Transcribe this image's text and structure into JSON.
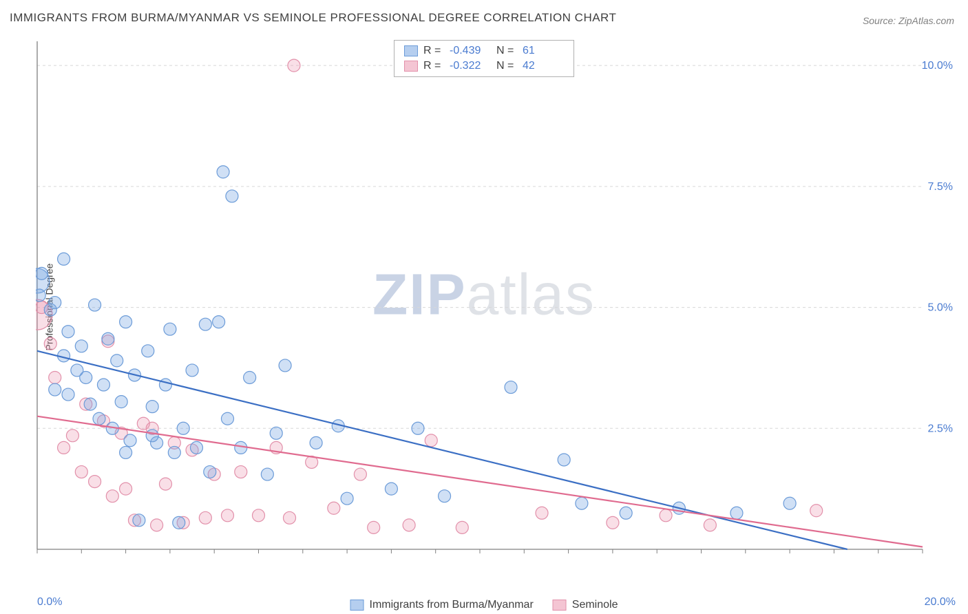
{
  "title": "IMMIGRANTS FROM BURMA/MYANMAR VS SEMINOLE PROFESSIONAL DEGREE CORRELATION CHART",
  "source": "Source: ZipAtlas.com",
  "ylabel": "Professional Degree",
  "watermark_a": "ZIP",
  "watermark_b": "atlas",
  "chart": {
    "type": "scatter",
    "xlim": [
      0,
      20
    ],
    "ylim": [
      0,
      10.5
    ],
    "xtick_min_label": "0.0%",
    "xtick_max_label": "20.0%",
    "yticks": [
      2.5,
      5.0,
      7.5,
      10.0
    ],
    "ytick_labels": [
      "2.5%",
      "5.0%",
      "7.5%",
      "10.0%"
    ],
    "ytick_color": "#4a7bd0",
    "xtick_color": "#4a7bd0",
    "grid_color": "#d8d8d8",
    "axis_color": "#808080",
    "background": "#ffffff",
    "marker_radius": 9,
    "marker_stroke_width": 1.2,
    "line_width": 2.2,
    "series": [
      {
        "name": "Immigrants from Burma/Myanmar",
        "fill": "rgba(120,165,225,0.35)",
        "stroke": "#6b9bd8",
        "line_color": "#3b6fc4",
        "R": "-0.439",
        "N": "61",
        "trend": {
          "x1": 0,
          "y1": 4.1,
          "x2": 18.3,
          "y2": 0
        },
        "points": [
          [
            0.0,
            5.55,
            18
          ],
          [
            0.05,
            5.25
          ],
          [
            0.1,
            5.7
          ],
          [
            0.3,
            4.95
          ],
          [
            0.4,
            5.1
          ],
          [
            0.6,
            6.0
          ],
          [
            0.6,
            4.0
          ],
          [
            0.7,
            4.5
          ],
          [
            0.9,
            3.7
          ],
          [
            1.0,
            4.2
          ],
          [
            1.1,
            3.55
          ],
          [
            1.3,
            5.05
          ],
          [
            1.2,
            3.0
          ],
          [
            1.4,
            2.7
          ],
          [
            1.5,
            3.4
          ],
          [
            1.6,
            4.35
          ],
          [
            1.7,
            2.5
          ],
          [
            1.9,
            3.05
          ],
          [
            2.0,
            4.7
          ],
          [
            2.1,
            2.25
          ],
          [
            2.2,
            3.6
          ],
          [
            2.3,
            0.6
          ],
          [
            2.5,
            4.1
          ],
          [
            2.6,
            2.95
          ],
          [
            2.7,
            2.2
          ],
          [
            2.9,
            3.4
          ],
          [
            3.0,
            4.55
          ],
          [
            3.1,
            2.0
          ],
          [
            3.3,
            2.5
          ],
          [
            3.5,
            3.7
          ],
          [
            3.6,
            2.1
          ],
          [
            3.8,
            4.65
          ],
          [
            3.9,
            1.6
          ],
          [
            4.1,
            4.7
          ],
          [
            4.2,
            7.8
          ],
          [
            4.4,
            7.3
          ],
          [
            4.3,
            2.7
          ],
          [
            4.6,
            2.1
          ],
          [
            4.8,
            3.55
          ],
          [
            5.2,
            1.55
          ],
          [
            5.4,
            2.4
          ],
          [
            5.6,
            3.8
          ],
          [
            6.3,
            2.2
          ],
          [
            6.8,
            2.55
          ],
          [
            7.0,
            1.05
          ],
          [
            8.0,
            1.25
          ],
          [
            8.6,
            2.5
          ],
          [
            9.2,
            1.1
          ],
          [
            10.7,
            3.35
          ],
          [
            11.9,
            1.85
          ],
          [
            12.3,
            0.95
          ],
          [
            13.3,
            0.75
          ],
          [
            14.5,
            0.85
          ],
          [
            15.8,
            0.75
          ],
          [
            17.0,
            0.95
          ],
          [
            0.7,
            3.2
          ],
          [
            1.8,
            3.9
          ],
          [
            0.4,
            3.3
          ],
          [
            2.0,
            2.0
          ],
          [
            2.6,
            2.35
          ],
          [
            3.2,
            0.55
          ]
        ]
      },
      {
        "name": "Seminole",
        "fill": "rgba(235,150,175,0.30)",
        "stroke": "#e290aa",
        "line_color": "#e06b8f",
        "R": "-0.322",
        "N": "42",
        "trend": {
          "x1": 0,
          "y1": 2.75,
          "x2": 20,
          "y2": 0.05
        },
        "points": [
          [
            0.0,
            4.85,
            22
          ],
          [
            0.1,
            5.0
          ],
          [
            0.3,
            4.25
          ],
          [
            0.4,
            3.55
          ],
          [
            0.6,
            2.1
          ],
          [
            0.8,
            2.35
          ],
          [
            1.0,
            1.6
          ],
          [
            1.1,
            3.0
          ],
          [
            1.3,
            1.4
          ],
          [
            1.5,
            2.65
          ],
          [
            1.6,
            4.3
          ],
          [
            1.7,
            1.1
          ],
          [
            1.9,
            2.4
          ],
          [
            2.0,
            1.25
          ],
          [
            2.2,
            0.6
          ],
          [
            2.4,
            2.6
          ],
          [
            2.6,
            2.5
          ],
          [
            2.7,
            0.5
          ],
          [
            2.9,
            1.35
          ],
          [
            3.1,
            2.2
          ],
          [
            3.3,
            0.55
          ],
          [
            3.5,
            2.05
          ],
          [
            3.8,
            0.65
          ],
          [
            4.0,
            1.55
          ],
          [
            4.3,
            0.7
          ],
          [
            4.6,
            1.6
          ],
          [
            5.0,
            0.7
          ],
          [
            5.4,
            2.1
          ],
          [
            5.7,
            0.65
          ],
          [
            5.8,
            10.0
          ],
          [
            6.2,
            1.8
          ],
          [
            6.7,
            0.85
          ],
          [
            7.3,
            1.55
          ],
          [
            7.6,
            0.45
          ],
          [
            8.4,
            0.5
          ],
          [
            8.9,
            2.25
          ],
          [
            9.6,
            0.45
          ],
          [
            11.4,
            0.75
          ],
          [
            13.0,
            0.55
          ],
          [
            14.2,
            0.7
          ],
          [
            15.2,
            0.5
          ],
          [
            17.6,
            0.8
          ]
        ]
      }
    ]
  },
  "legend_top": {
    "rows": [
      {
        "swatch": "rgba(120,165,225,0.55)",
        "border": "#6b9bd8",
        "R_label": "R =",
        "R_val": "-0.439",
        "N_label": "N =",
        "N_val": "61"
      },
      {
        "swatch": "rgba(235,150,175,0.55)",
        "border": "#e290aa",
        "R_label": "R =",
        "R_val": "-0.322",
        "N_label": "N =",
        "N_val": "42"
      }
    ]
  },
  "legend_bottom": {
    "items": [
      {
        "swatch": "rgba(120,165,225,0.55)",
        "border": "#6b9bd8",
        "label": "Immigrants from Burma/Myanmar"
      },
      {
        "swatch": "rgba(235,150,175,0.55)",
        "border": "#e290aa",
        "label": "Seminole"
      }
    ]
  }
}
